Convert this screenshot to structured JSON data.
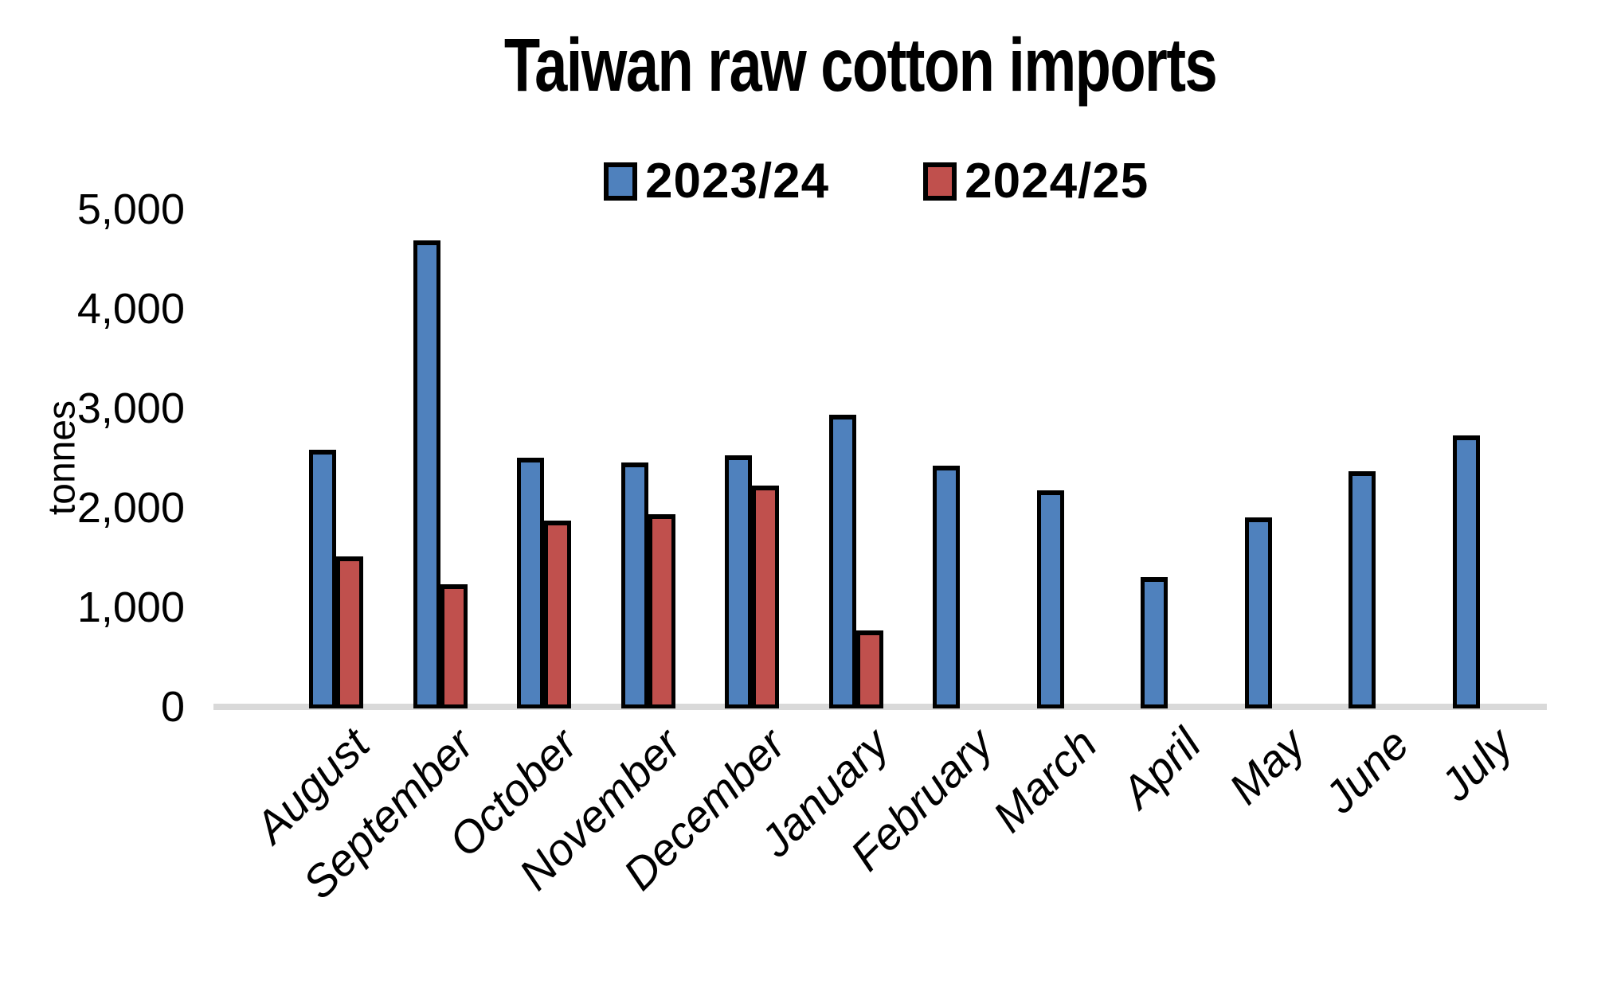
{
  "chart_data": {
    "type": "bar",
    "title": "Taiwan raw cotton imports",
    "ylabel": "tonnes",
    "xlabel": "",
    "ylim": [
      0,
      5000
    ],
    "grid": false,
    "legend_position": "top-center",
    "yticks": [
      {
        "value": 0,
        "label": "0"
      },
      {
        "value": 1000,
        "label": "1,000"
      },
      {
        "value": 2000,
        "label": "2,000"
      },
      {
        "value": 3000,
        "label": "3,000"
      },
      {
        "value": 4000,
        "label": "4,000"
      },
      {
        "value": 5000,
        "label": "5,000"
      }
    ],
    "categories": [
      "August",
      "September",
      "October",
      "November",
      "December",
      "January",
      "February",
      "March",
      "April",
      "May",
      "June",
      "July"
    ],
    "series": [
      {
        "name": "2023/24",
        "color": "#4F81BD",
        "values": [
          2600,
          4700,
          2520,
          2470,
          2540,
          2950,
          2440,
          2190,
          1320,
          1920,
          2380,
          2740
        ]
      },
      {
        "name": "2024/25",
        "color": "#C0504D",
        "values": [
          1530,
          1250,
          1890,
          1950,
          2240,
          780,
          null,
          null,
          null,
          null,
          null,
          null
        ]
      }
    ],
    "bar_outline_color": "#000000",
    "axis_line_color": "#D9D9D9"
  }
}
